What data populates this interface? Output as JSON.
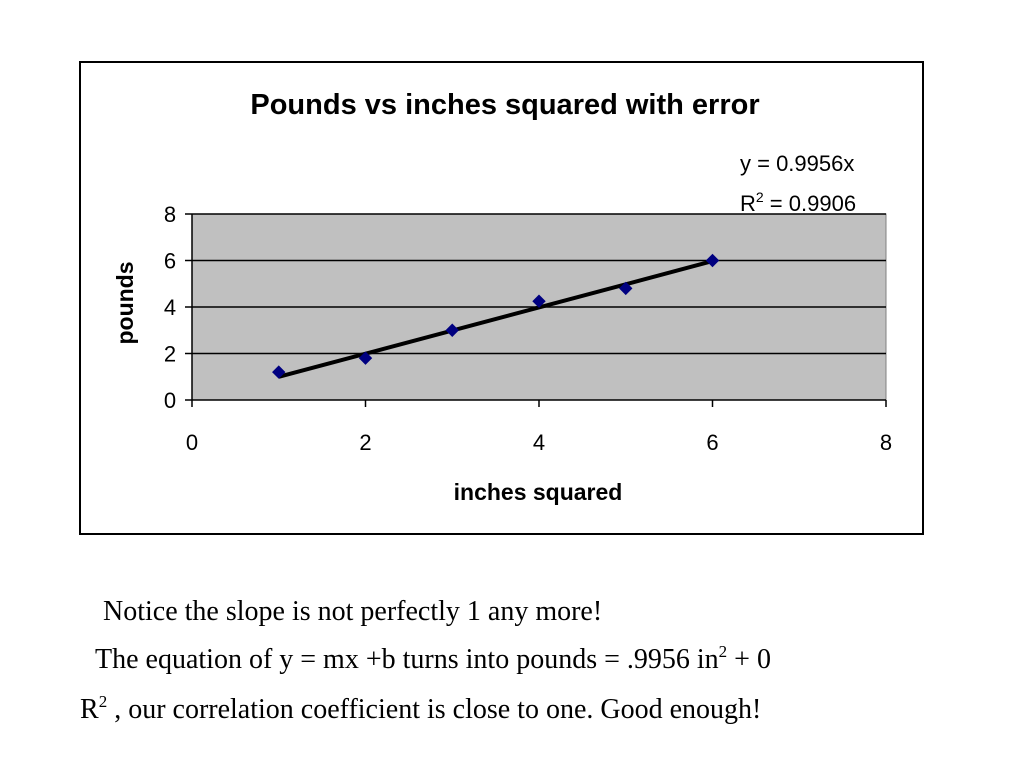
{
  "chart_data": {
    "type": "scatter",
    "title": "Pounds vs inches squared with error",
    "xlabel": "inches squared",
    "ylabel": "pounds",
    "xlim": [
      0,
      8
    ],
    "ylim": [
      0,
      8
    ],
    "xticks": [
      "0",
      "2",
      "4",
      "6",
      "8"
    ],
    "yticks": [
      "0",
      "2",
      "4",
      "6",
      "8"
    ],
    "x_tick_values": [
      0,
      2,
      4,
      6,
      8
    ],
    "y_tick_values": [
      0,
      2,
      4,
      6,
      8
    ],
    "grid": "horizontal",
    "plot_background": "#c0c0c0",
    "marker": "diamond",
    "marker_color": "#000080",
    "points": [
      {
        "x": 1,
        "y": 1.2
      },
      {
        "x": 2,
        "y": 1.8
      },
      {
        "x": 3,
        "y": 3.0
      },
      {
        "x": 4,
        "y": 4.25
      },
      {
        "x": 5,
        "y": 4.8
      },
      {
        "x": 6,
        "y": 6.0
      }
    ],
    "trendline": {
      "type": "linear",
      "slope": 0.9956,
      "intercept": 0,
      "x_range": [
        1,
        6
      ],
      "color": "#000000",
      "equation_label": "y = 0.9956x",
      "r2_label_prefix": "R",
      "r2_label_sup": "2",
      "r2_label_suffix": " = 0.9906"
    }
  },
  "notes": {
    "line1": "Notice the slope is not perfectly 1 any more!",
    "line2_before": "The equation of y = mx +b  turns into pounds = .9956 in",
    "line2_sup": "2",
    "line2_after": " + 0",
    "line3_before": "R",
    "line3_sup": "2",
    "line3_after": " , our correlation coefficient is close to one.  Good enough!"
  }
}
